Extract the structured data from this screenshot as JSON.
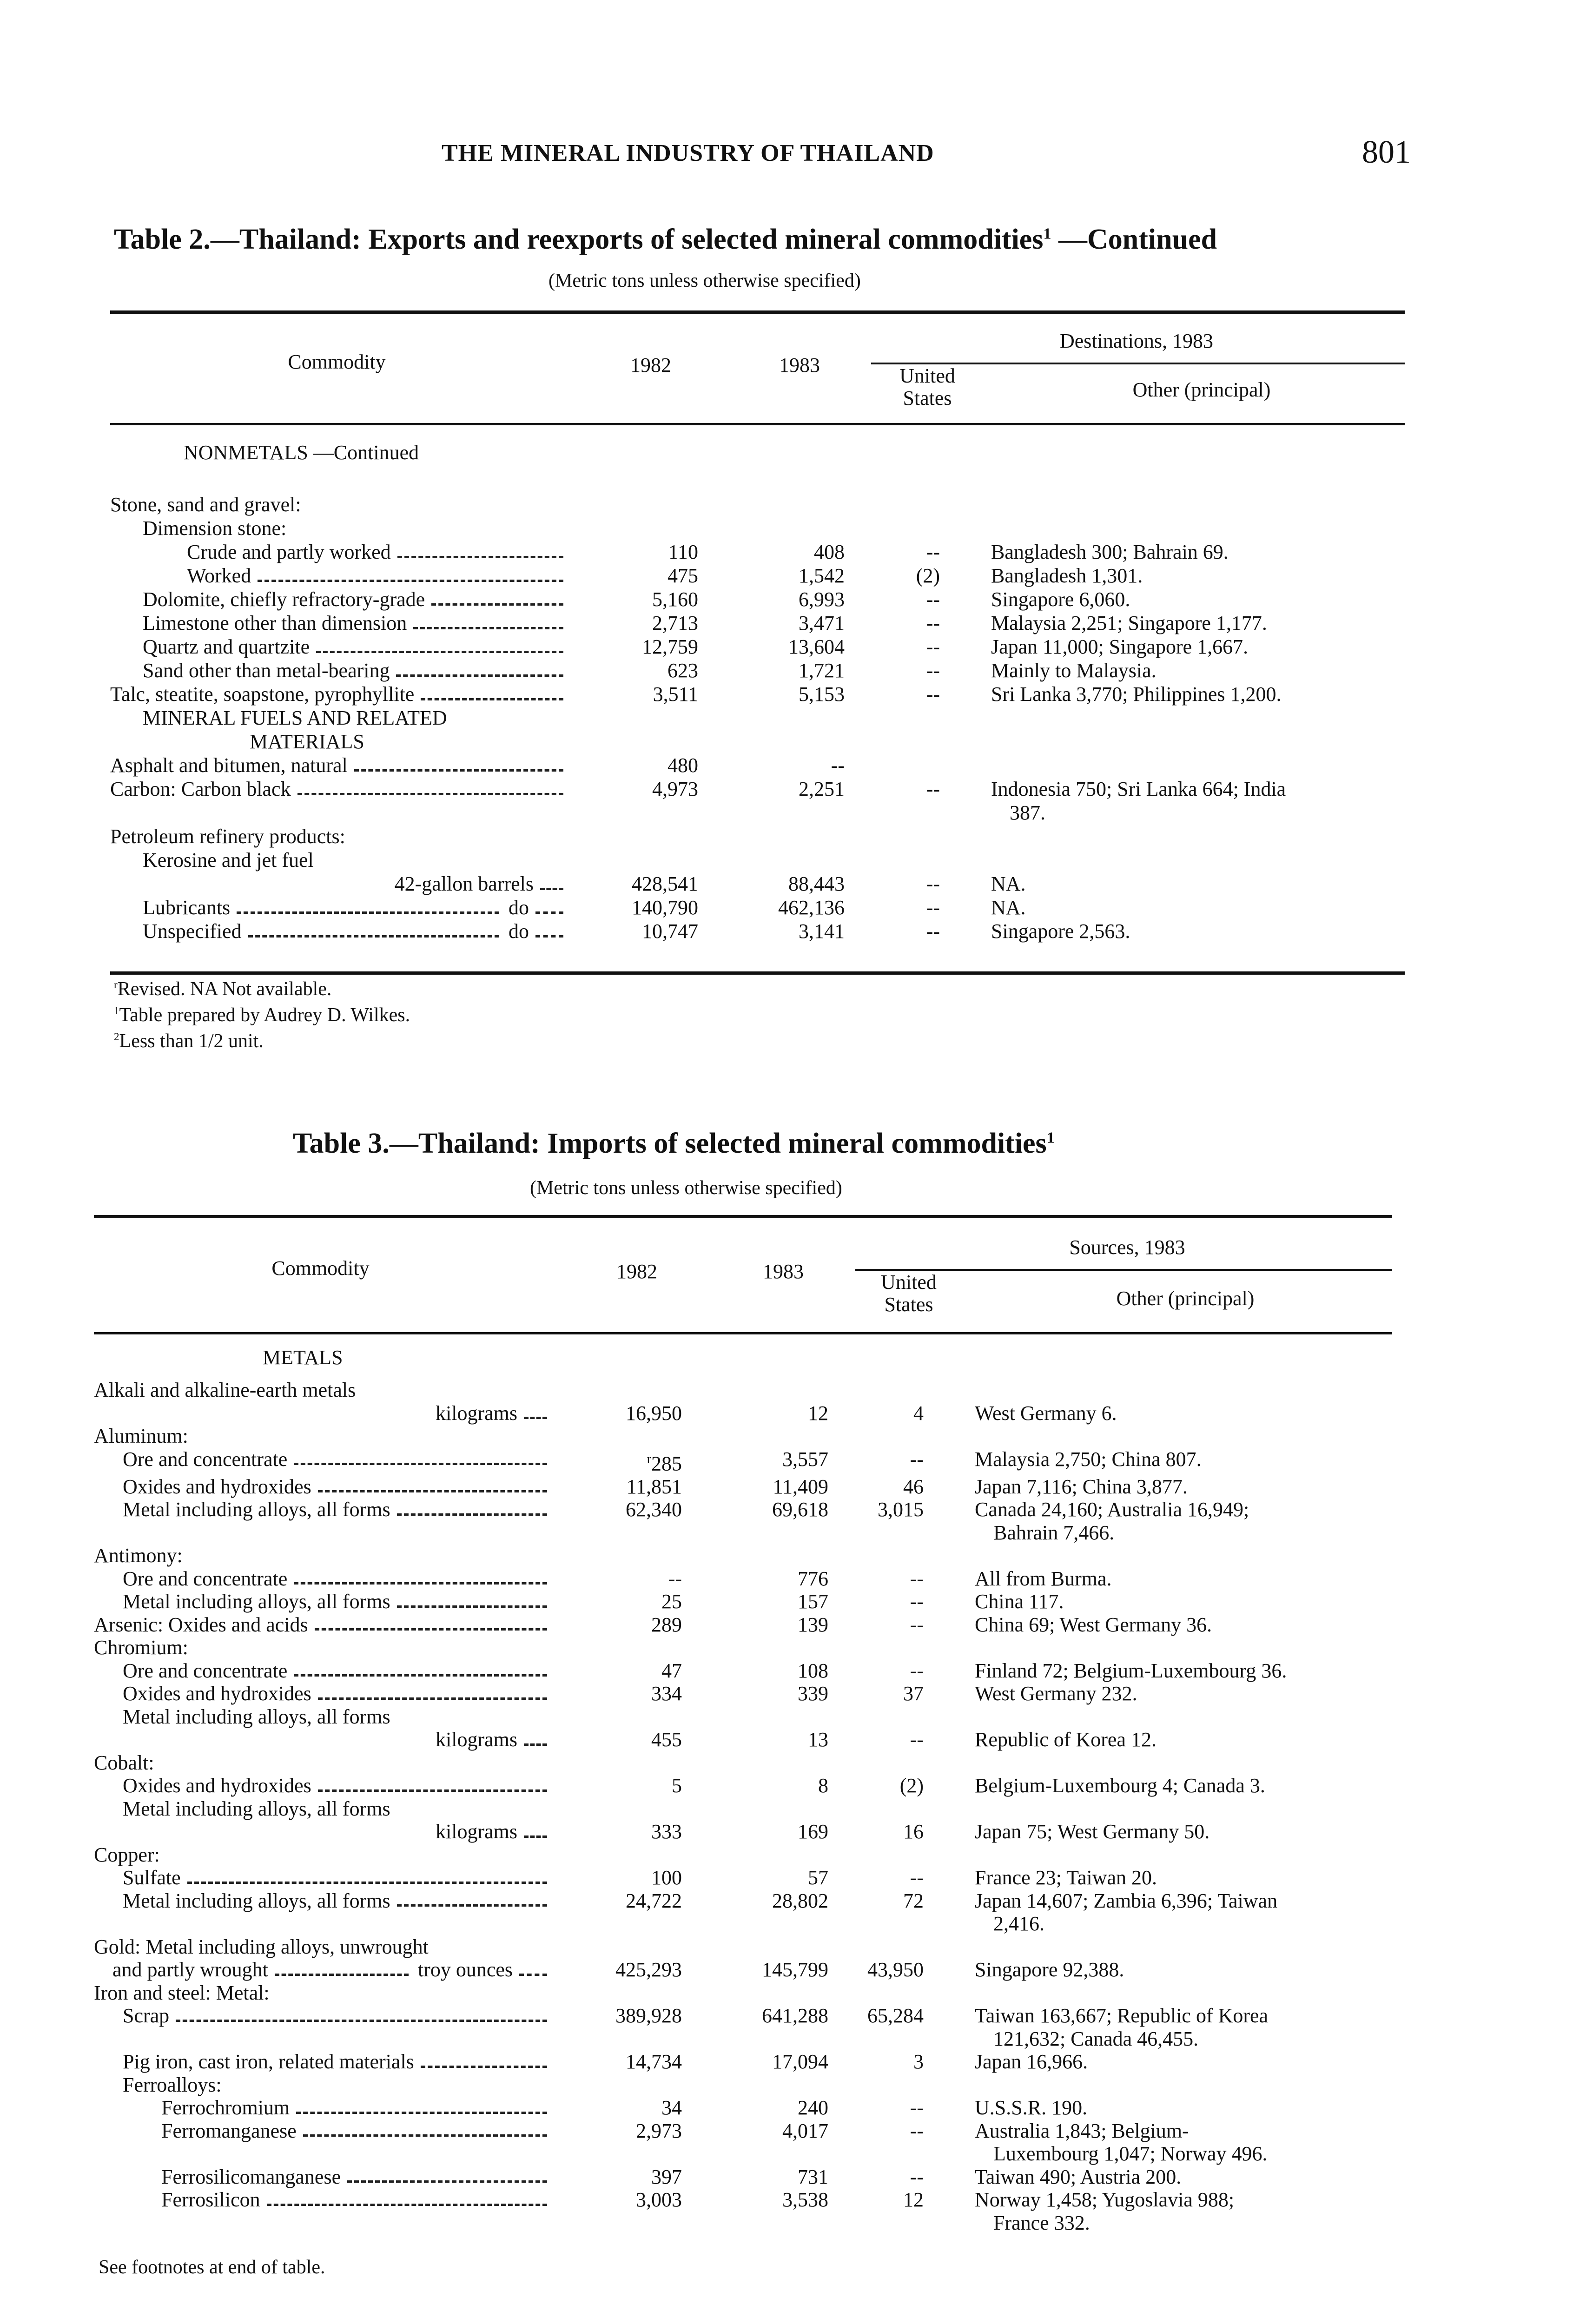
{
  "running_head": {
    "title": "THE MINERAL INDUSTRY OF THAILAND",
    "page_number": "801"
  },
  "table2": {
    "title": "Table 2.—Thailand: Exports and reexports of selected mineral commodities",
    "title_note": "1",
    "title_suffix": " —Continued",
    "subtitle": "(Metric tons unless otherwise specified)",
    "headers": {
      "commodity": "Commodity",
      "y1982": "1982",
      "y1983": "1983",
      "group": "Destinations, 1983",
      "us_line1": "United",
      "us_line2": "States",
      "other": "Other (principal)"
    },
    "section": "NONMETALS —Continued",
    "rows": [
      {
        "label": "Stone, sand and gravel:",
        "indent": 0
      },
      {
        "label": "Dimension stone:",
        "indent": 1
      },
      {
        "label": "Crude and partly worked",
        "indent": 2,
        "leader": true,
        "v1982": "110",
        "v1983": "408",
        "us": "--",
        "other": [
          "Bangladesh 300; Bahrain 69."
        ]
      },
      {
        "label": "Worked",
        "indent": 2,
        "leader": true,
        "v1982": "475",
        "v1983": "1,542",
        "us": "(2)",
        "other": [
          "Bangladesh 1,301."
        ]
      },
      {
        "label": "Dolomite, chiefly refractory-grade",
        "indent": 1,
        "leader": true,
        "v1982": "5,160",
        "v1983": "6,993",
        "us": "--",
        "other": [
          "Singapore 6,060."
        ]
      },
      {
        "label": "Limestone other than dimension",
        "indent": 1,
        "leader": true,
        "v1982": "2,713",
        "v1983": "3,471",
        "us": "--",
        "other": [
          "Malaysia 2,251; Singapore 1,177."
        ]
      },
      {
        "label": "Quartz and quartzite",
        "indent": 1,
        "leader": true,
        "v1982": "12,759",
        "v1983": "13,604",
        "us": "--",
        "other": [
          "Japan 11,000; Singapore 1,667."
        ]
      },
      {
        "label": "Sand other than metal-bearing",
        "indent": 1,
        "leader": true,
        "v1982": "623",
        "v1983": "1,721",
        "us": "--",
        "other": [
          "Mainly to Malaysia."
        ]
      },
      {
        "label": "Talc, steatite, soapstone, pyrophyllite",
        "indent": 0,
        "leader": true,
        "v1982": "3,511",
        "v1983": "5,153",
        "us": "--",
        "other": [
          "Sri Lanka 3,770; Philippines 1,200."
        ]
      },
      {
        "label": "MINERAL FUELS AND RELATED",
        "indent": 1
      },
      {
        "label": "MATERIALS",
        "indent": 3
      },
      {
        "label": "Asphalt and bitumen, natural",
        "indent": 0,
        "leader": true,
        "v1982": "480",
        "v1983": "--"
      },
      {
        "label": "Carbon: Carbon black",
        "indent": 0,
        "leader": true,
        "v1982": "4,973",
        "v1983": "2,251",
        "us": "--",
        "other": [
          "Indonesia 750; Sri Lanka 664; India",
          "387."
        ]
      },
      {
        "label": "Petroleum refinery products:",
        "indent": 0
      },
      {
        "label": "Kerosine and jet fuel",
        "indent": 1
      },
      {
        "label": "42-gallon barrels",
        "indent": "right",
        "leader": true,
        "v1982": "428,541",
        "v1983": "88,443",
        "us": "--",
        "other": [
          "NA."
        ]
      },
      {
        "label": "Lubricants",
        "unit": "do",
        "indent": 1,
        "leader": true,
        "v1982": "140,790",
        "v1983": "462,136",
        "us": "--",
        "other": [
          "NA."
        ]
      },
      {
        "label": "Unspecified",
        "unit": "do",
        "indent": 1,
        "leader": true,
        "v1982": "10,747",
        "v1983": "3,141",
        "us": "--",
        "other": [
          "Singapore 2,563."
        ]
      }
    ],
    "footnotes": [
      {
        "mark": "r",
        "text": "Revised.    NA Not available."
      },
      {
        "mark": "1",
        "text": "Table prepared by Audrey D. Wilkes."
      },
      {
        "mark": "2",
        "text": "Less than 1/2 unit."
      }
    ]
  },
  "table3": {
    "title": "Table 3.—Thailand: Imports of selected mineral commodities",
    "title_note": "1",
    "subtitle": "(Metric tons unless otherwise specified)",
    "headers": {
      "commodity": "Commodity",
      "y1982": "1982",
      "y1983": "1983",
      "group": "Sources, 1983",
      "us_line1": "United",
      "us_line2": "States",
      "other": "Other (principal)"
    },
    "section": "METALS",
    "rows": [
      {
        "label": "Alkali and alkaline-earth metals",
        "indent": 0
      },
      {
        "label": "kilograms",
        "indent": "right",
        "leader": true,
        "v1982": "16,950",
        "v1983": "12",
        "us": "4",
        "other": [
          "West Germany 6."
        ]
      },
      {
        "label": "Aluminum:",
        "indent": 0
      },
      {
        "label": "Ore and concentrate",
        "indent": 1,
        "leader": true,
        "v1982": "285",
        "revised": true,
        "v1983": "3,557",
        "us": "--",
        "other": [
          "Malaysia 2,750; China 807."
        ]
      },
      {
        "label": "Oxides and hydroxides",
        "indent": 1,
        "leader": true,
        "v1982": "11,851",
        "v1983": "11,409",
        "us": "46",
        "other": [
          "Japan 7,116; China 3,877."
        ]
      },
      {
        "label": "Metal including alloys, all forms",
        "indent": 1,
        "leader": true,
        "v1982": "62,340",
        "v1983": "69,618",
        "us": "3,015",
        "other": [
          "Canada 24,160; Australia 16,949;",
          "Bahrain 7,466."
        ]
      },
      {
        "label": "Antimony:",
        "indent": 0
      },
      {
        "label": "Ore and concentrate",
        "indent": 1,
        "leader": true,
        "v1982": "--",
        "v1983": "776",
        "us": "--",
        "other": [
          "All from Burma."
        ]
      },
      {
        "label": "Metal including alloys, all forms",
        "indent": 1,
        "leader": true,
        "v1982": "25",
        "v1983": "157",
        "us": "--",
        "other": [
          "China 117."
        ]
      },
      {
        "label": "Arsenic: Oxides and acids",
        "indent": 0,
        "leader": true,
        "v1982": "289",
        "v1983": "139",
        "us": "--",
        "other": [
          "China 69; West Germany 36."
        ]
      },
      {
        "label": "Chromium:",
        "indent": 0
      },
      {
        "label": "Ore and concentrate",
        "indent": 1,
        "leader": true,
        "v1982": "47",
        "v1983": "108",
        "us": "--",
        "other": [
          "Finland 72; Belgium-Luxembourg 36."
        ]
      },
      {
        "label": "Oxides and hydroxides",
        "indent": 1,
        "leader": true,
        "v1982": "334",
        "v1983": "339",
        "us": "37",
        "other": [
          "West Germany 232."
        ]
      },
      {
        "label": "Metal including alloys, all forms",
        "indent": 1
      },
      {
        "label": "kilograms",
        "indent": "right",
        "leader": true,
        "v1982": "455",
        "v1983": "13",
        "us": "--",
        "other": [
          "Republic of Korea 12."
        ]
      },
      {
        "label": "Cobalt:",
        "indent": 0
      },
      {
        "label": "Oxides and hydroxides",
        "indent": 1,
        "leader": true,
        "v1982": "5",
        "v1983": "8",
        "us": "(2)",
        "other": [
          "Belgium-Luxembourg 4; Canada 3."
        ]
      },
      {
        "label": "Metal including alloys, all forms",
        "indent": 1
      },
      {
        "label": "kilograms",
        "indent": "right",
        "leader": true,
        "v1982": "333",
        "v1983": "169",
        "us": "16",
        "other": [
          "Japan 75; West Germany 50."
        ]
      },
      {
        "label": "Copper:",
        "indent": 0
      },
      {
        "label": "Sulfate",
        "indent": 1,
        "leader": true,
        "v1982": "100",
        "v1983": "57",
        "us": "--",
        "other": [
          "France 23; Taiwan 20."
        ]
      },
      {
        "label": "Metal including alloys, all forms",
        "indent": 1,
        "leader": true,
        "v1982": "24,722",
        "v1983": "28,802",
        "us": "72",
        "other": [
          "Japan 14,607; Zambia 6,396; Taiwan",
          "2,416."
        ]
      },
      {
        "label": "Gold: Metal including alloys, unwrought",
        "indent": 0
      },
      {
        "label": "and partly wrought",
        "unit": "troy ounces",
        "indent": 0.5,
        "leader": true,
        "v1982": "425,293",
        "v1983": "145,799",
        "us": "43,950",
        "other": [
          "Singapore 92,388."
        ]
      },
      {
        "label": "Iron and steel: Metal:",
        "indent": 0
      },
      {
        "label": "Scrap",
        "indent": 1,
        "leader": true,
        "v1982": "389,928",
        "v1983": "641,288",
        "us": "65,284",
        "other": [
          "Taiwan 163,667; Republic of Korea",
          "121,632; Canada 46,455."
        ]
      },
      {
        "label": "Pig iron, cast iron, related materials",
        "indent": 1,
        "leader": true,
        "v1982": "14,734",
        "v1983": "17,094",
        "us": "3",
        "other": [
          "Japan 16,966."
        ]
      },
      {
        "label": "Ferroalloys:",
        "indent": 1
      },
      {
        "label": "Ferrochromium",
        "indent": 2,
        "leader": true,
        "v1982": "34",
        "v1983": "240",
        "us": "--",
        "other": [
          "U.S.S.R. 190."
        ]
      },
      {
        "label": "Ferromanganese",
        "indent": 2,
        "leader": true,
        "v1982": "2,973",
        "v1983": "4,017",
        "us": "--",
        "other": [
          "Australia 1,843; Belgium-",
          "Luxembourg 1,047; Norway 496."
        ]
      },
      {
        "label": "Ferrosilicomanganese",
        "indent": 2,
        "leader": true,
        "v1982": "397",
        "v1983": "731",
        "us": "--",
        "other": [
          "Taiwan 490; Austria 200."
        ]
      },
      {
        "label": "Ferrosilicon",
        "indent": 2,
        "leader": true,
        "v1982": "3,003",
        "v1983": "3,538",
        "us": "12",
        "other": [
          "Norway 1,458; Yugoslavia 988;",
          "France 332."
        ]
      }
    ],
    "footer_note": "See footnotes at end of table."
  }
}
